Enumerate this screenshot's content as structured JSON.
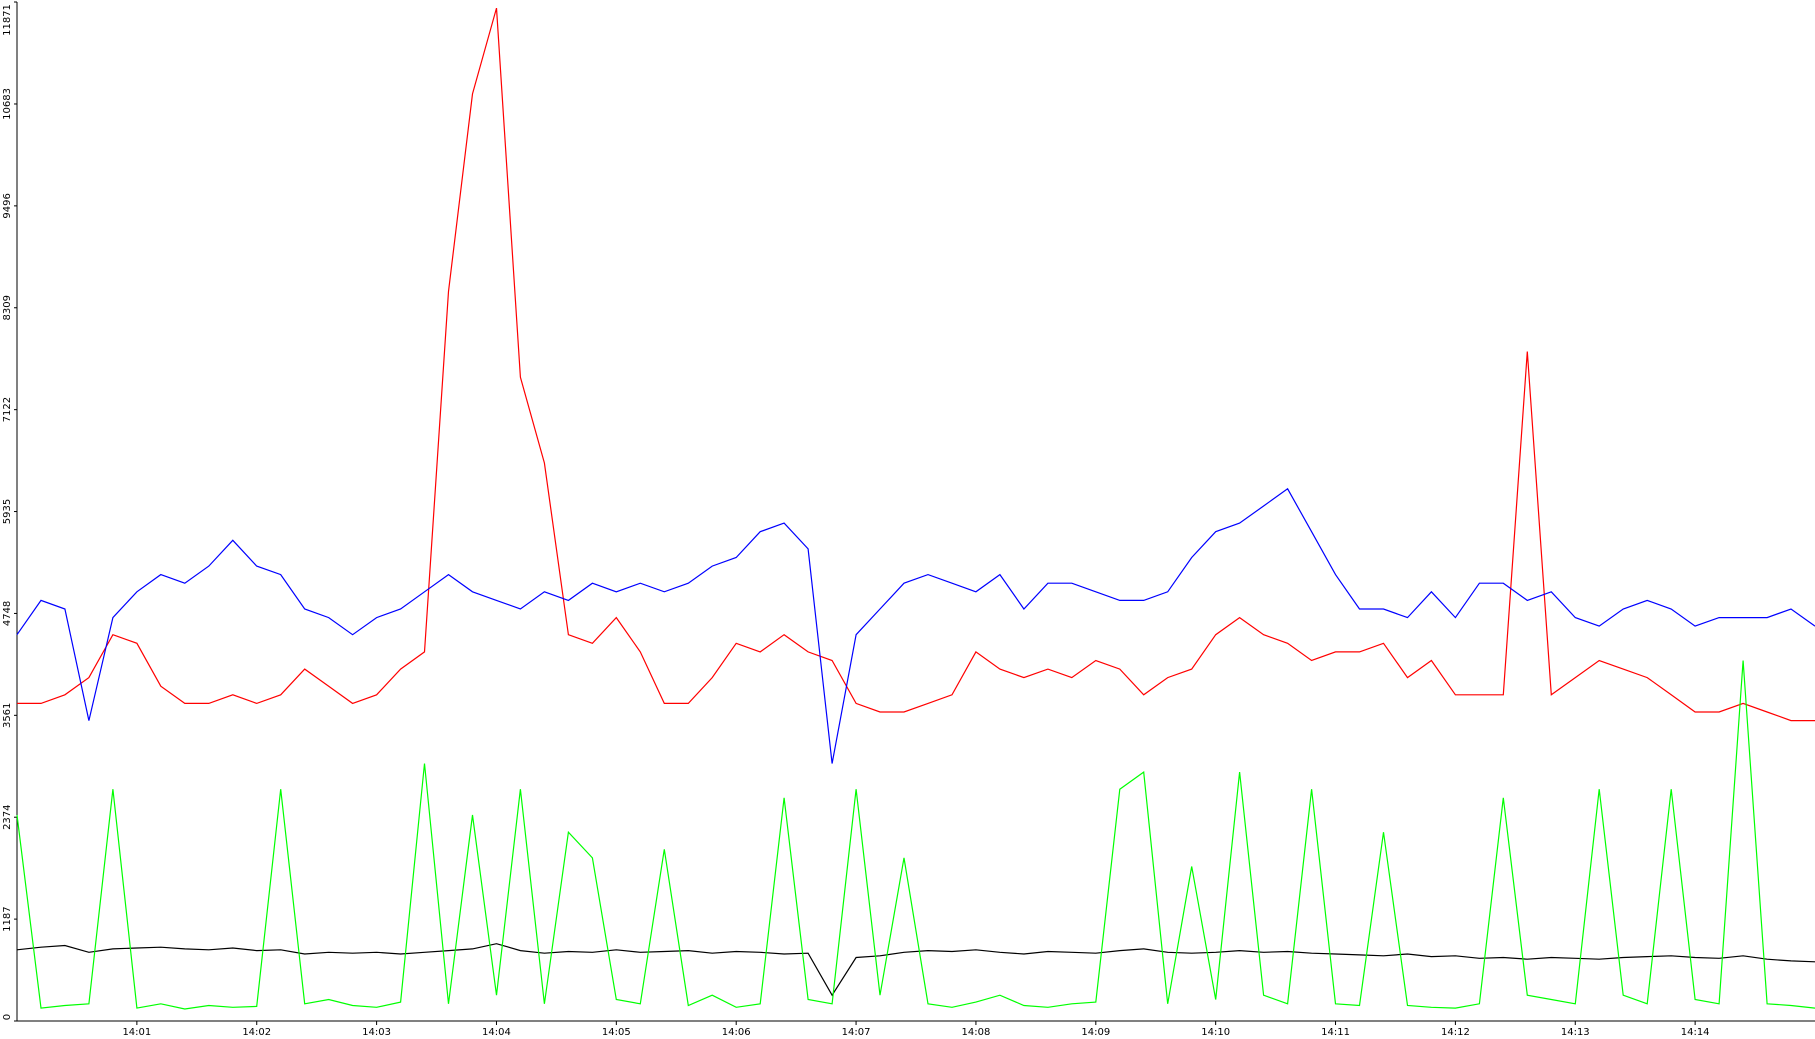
{
  "chart_data": {
    "type": "line",
    "xlim": [
      0,
      15
    ],
    "ylim": [
      0,
      11871
    ],
    "yticks": [
      0,
      1187,
      2374,
      3561,
      4748,
      5935,
      7122,
      8309,
      9496,
      10683,
      11871
    ],
    "xticks": [
      {
        "value": 1,
        "label": "14:01"
      },
      {
        "value": 2,
        "label": "14:02"
      },
      {
        "value": 3,
        "label": "14:03"
      },
      {
        "value": 4,
        "label": "14:04"
      },
      {
        "value": 5,
        "label": "14:05"
      },
      {
        "value": 6,
        "label": "14:06"
      },
      {
        "value": 7,
        "label": "14:07"
      },
      {
        "value": 8,
        "label": "14:08"
      },
      {
        "value": 9,
        "label": "14:09"
      },
      {
        "value": 10,
        "label": "14:10"
      },
      {
        "value": 11,
        "label": "14:11"
      },
      {
        "value": 12,
        "label": "14:12"
      },
      {
        "value": 13,
        "label": "14:13"
      },
      {
        "value": 14,
        "label": "14:14"
      }
    ],
    "x": [
      0,
      0.2,
      0.4,
      0.6,
      0.8,
      1,
      1.2,
      1.4,
      1.6,
      1.8,
      2,
      2.2,
      2.4,
      2.6,
      2.8,
      3,
      3.2,
      3.4,
      3.6,
      3.8,
      4,
      4.2,
      4.4,
      4.6,
      4.8,
      5,
      5.2,
      5.4,
      5.6,
      5.8,
      6,
      6.2,
      6.4,
      6.6,
      6.8,
      7,
      7.2,
      7.4,
      7.6,
      7.8,
      8,
      8.2,
      8.4,
      8.6,
      8.8,
      9,
      9.2,
      9.4,
      9.6,
      9.8,
      10,
      10.2,
      10.4,
      10.6,
      10.8,
      11,
      11.2,
      11.4,
      11.6,
      11.8,
      12,
      12.2,
      12.4,
      12.6,
      12.8,
      13,
      13.2,
      13.4,
      13.6,
      13.8,
      14,
      14.2,
      14.4,
      14.6,
      14.8,
      15
    ],
    "series": [
      {
        "color": "#ff0000",
        "values": [
          3700,
          3700,
          3800,
          4000,
          4500,
          4400,
          3900,
          3700,
          3700,
          3800,
          3700,
          3800,
          4100,
          3900,
          3700,
          3800,
          4100,
          4300,
          8500,
          10800,
          11800,
          7500,
          6500,
          4500,
          4400,
          4700,
          4300,
          3700,
          3700,
          4000,
          4400,
          4300,
          4500,
          4300,
          4200,
          3700,
          3600,
          3600,
          3700,
          3800,
          4300,
          4100,
          4000,
          4100,
          4000,
          4200,
          4100,
          3800,
          4000,
          4100,
          4500,
          4700,
          4500,
          4400,
          4200,
          4300,
          4300,
          4400,
          4000,
          4200,
          3800,
          3800,
          3800,
          7800,
          3800,
          4000,
          4200,
          4100,
          4000,
          3800,
          3600,
          3600,
          3700,
          3600,
          3500,
          3500
        ]
      },
      {
        "color": "#0000ff",
        "values": [
          4500,
          4900,
          4800,
          3500,
          4700,
          5000,
          5200,
          5100,
          5300,
          5600,
          5300,
          5200,
          4800,
          4700,
          4500,
          4700,
          4800,
          5000,
          5200,
          5000,
          4900,
          4800,
          5000,
          4900,
          5100,
          5000,
          5100,
          5000,
          5100,
          5300,
          5400,
          5700,
          5800,
          5500,
          3000,
          4500,
          4800,
          5100,
          5200,
          5100,
          5000,
          5200,
          4800,
          5100,
          5100,
          5000,
          4900,
          4900,
          5000,
          5400,
          5700,
          5800,
          6000,
          6200,
          5700,
          5200,
          4800,
          4800,
          4700,
          5000,
          4700,
          5100,
          5100,
          4900,
          5000,
          4700,
          4600,
          4800,
          4900,
          4800,
          4600,
          4700,
          4700,
          4700,
          4800,
          4600
        ]
      },
      {
        "color": "#000000",
        "values": [
          830,
          860,
          880,
          800,
          840,
          850,
          860,
          840,
          830,
          850,
          820,
          830,
          780,
          800,
          790,
          800,
          780,
          800,
          820,
          840,
          900,
          820,
          790,
          810,
          800,
          830,
          800,
          810,
          820,
          790,
          810,
          800,
          780,
          790,
          300,
          740,
          760,
          800,
          820,
          810,
          830,
          800,
          780,
          810,
          800,
          790,
          820,
          840,
          800,
          790,
          800,
          820,
          800,
          810,
          790,
          780,
          770,
          760,
          780,
          750,
          760,
          730,
          740,
          720,
          740,
          730,
          720,
          740,
          750,
          760,
          740,
          730,
          760,
          720,
          700,
          690
        ]
      },
      {
        "color": "#00ff00",
        "values": [
          2400,
          150,
          180,
          200,
          2700,
          150,
          200,
          140,
          180,
          160,
          170,
          2700,
          200,
          250,
          180,
          160,
          220,
          3000,
          200,
          2400,
          300,
          2700,
          200,
          2200,
          1900,
          250,
          200,
          2000,
          180,
          300,
          160,
          200,
          2600,
          250,
          200,
          2700,
          300,
          1900,
          200,
          160,
          220,
          300,
          180,
          160,
          200,
          220,
          2700,
          2900,
          200,
          1800,
          250,
          2900,
          300,
          200,
          2700,
          200,
          180,
          2200,
          180,
          160,
          150,
          200,
          2600,
          300,
          250,
          200,
          2700,
          300,
          200,
          2700,
          250,
          200,
          4200,
          200,
          180,
          150
        ]
      }
    ]
  }
}
